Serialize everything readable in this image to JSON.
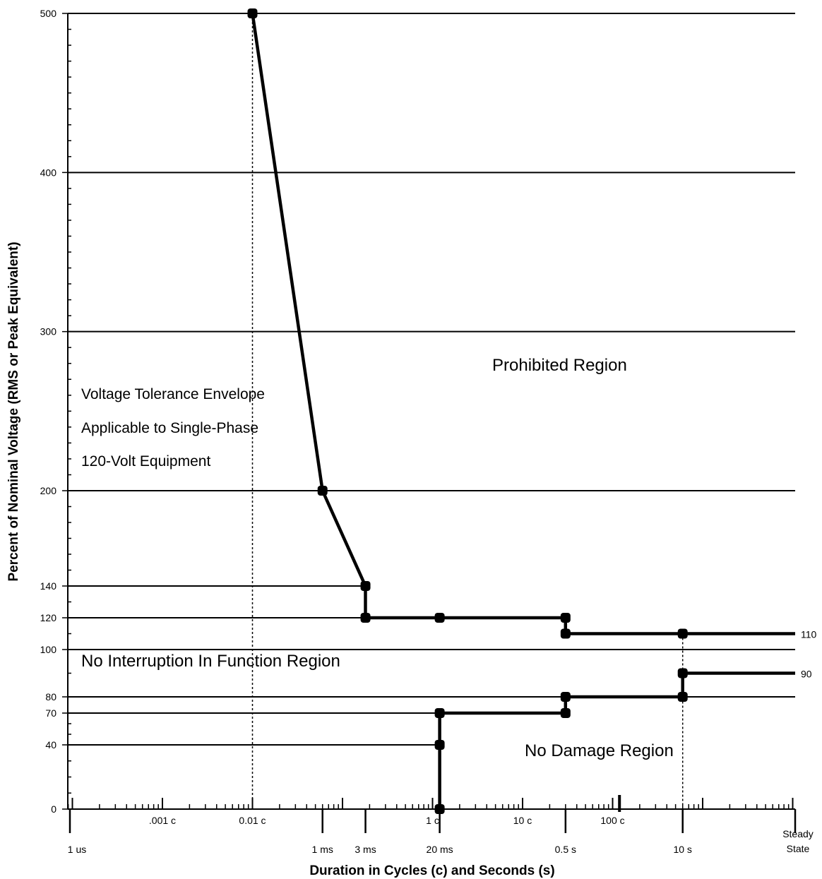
{
  "chart_data": {
    "type": "line",
    "title": "",
    "xlabel": "Duration in Cycles (c) and Seconds (s)",
    "ylabel": "Percent of Nominal Voltage (RMS or Peak Equivalent)",
    "x_scale": "log",
    "x_unit": "cycles (60 Hz)",
    "xlim": [
      6e-05,
      10000
    ],
    "ylim": [
      0,
      500
    ],
    "y_scale": "piecewise-linear",
    "y_ticks": [
      0,
      40,
      70,
      80,
      100,
      120,
      140,
      200,
      300,
      400,
      500
    ],
    "grid_lines_y": [
      40,
      70,
      80,
      100,
      120,
      140,
      200,
      300,
      400,
      500
    ],
    "x_tick_labels_cycles": [
      {
        "x": 0.001,
        "label": ".001 c"
      },
      {
        "x": 0.01,
        "label": "0.01 c"
      },
      {
        "x": 1,
        "label": "1 c"
      },
      {
        "x": 10,
        "label": "10 c"
      },
      {
        "x": 100,
        "label": "100 c"
      }
    ],
    "x_tick_labels_seconds": [
      {
        "x": 6e-05,
        "label": "1 us"
      },
      {
        "x": 0.06,
        "label": "1 ms"
      },
      {
        "x": 0.18,
        "label": "3 ms"
      },
      {
        "x": 1.2,
        "label": "20 ms"
      },
      {
        "x": 30,
        "label": "0.5 s"
      },
      {
        "x": 600,
        "label": "10 s"
      },
      {
        "x": 10000,
        "label_lines": [
          "Steady",
          "State"
        ]
      }
    ],
    "right_labels": [
      {
        "y": 110,
        "label": "110"
      },
      {
        "y": 90,
        "label": "90"
      }
    ],
    "series": [
      {
        "points": [
          [
            0.01,
            500
          ],
          [
            0.06,
            200
          ],
          [
            0.18,
            140
          ],
          [
            0.18,
            120
          ],
          [
            1.2,
            120
          ],
          [
            30,
            120
          ],
          [
            30,
            110
          ],
          [
            600,
            110
          ],
          [
            10000,
            110
          ]
        ],
        "markers": [
          [
            0.01,
            500
          ],
          [
            0.06,
            200
          ],
          [
            0.18,
            140
          ],
          [
            0.18,
            120
          ],
          [
            1.2,
            120
          ],
          [
            30,
            120
          ],
          [
            30,
            110
          ],
          [
            600,
            110
          ]
        ]
      },
      {
        "points": [
          [
            1.2,
            0
          ],
          [
            1.2,
            40
          ],
          [
            1.2,
            70
          ],
          [
            30,
            70
          ],
          [
            30,
            80
          ],
          [
            600,
            80
          ],
          [
            600,
            90
          ],
          [
            10000,
            90
          ]
        ],
        "markers": [
          [
            1.2,
            0
          ],
          [
            1.2,
            40
          ],
          [
            1.2,
            70
          ],
          [
            30,
            70
          ],
          [
            30,
            80
          ],
          [
            600,
            80
          ],
          [
            600,
            90
          ]
        ]
      }
    ],
    "reference_lines_dotted_x": [
      0.01,
      600
    ],
    "regions": [
      {
        "label": "Prohibited Region"
      },
      {
        "label": "No Interruption In Function Region"
      },
      {
        "label": "No Damage Region"
      }
    ],
    "annotation_lines": [
      "Voltage Tolerance Envelope",
      "Applicable to Single-Phase",
      "120-Volt Equipment"
    ]
  }
}
